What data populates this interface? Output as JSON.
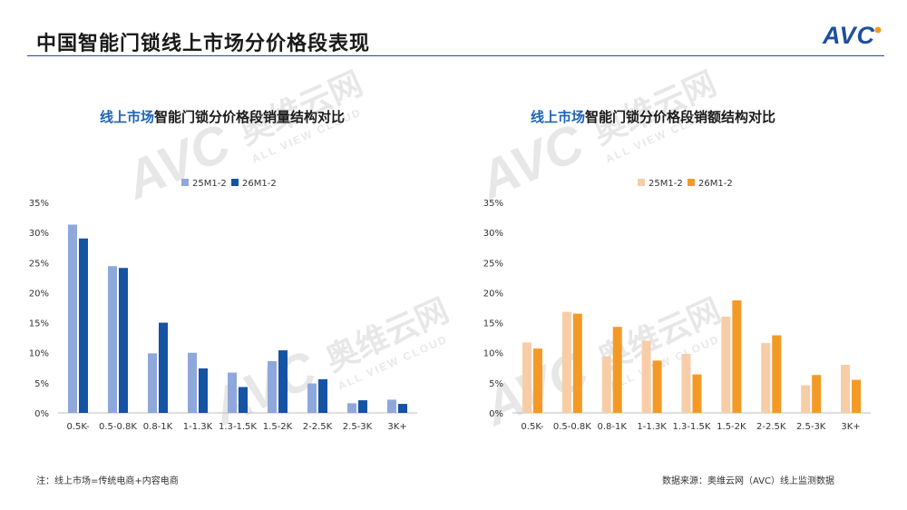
{
  "page": {
    "title": "中国智能门锁线上市场分价格段表现",
    "footnote": "注：线上市场=传统电商+内容电商",
    "source": "数据来源：奥维云网（AVC）线上监测数据"
  },
  "logo": {
    "text": "AVC",
    "color": "#1d4f9c"
  },
  "watermark": {
    "brand": "AVC",
    "cn": "奥维云网",
    "en": "ALL VIEW CLOUD"
  },
  "chart_data": [
    {
      "type": "bar",
      "title_highlight": "线上市场",
      "title_rest": "智能门锁分价格段销量结构对比",
      "categories": [
        "0.5K-",
        "0.5-0.8K",
        "0.8-1K",
        "1-1.3K",
        "1.3-1.5K",
        "1.5-2K",
        "2-2.5K",
        "2.5-3K",
        "3K+"
      ],
      "series": [
        {
          "name": "25M1-2",
          "color": "#8fa8dc",
          "values": [
            31.3,
            24.4,
            9.9,
            10.0,
            6.7,
            8.6,
            4.9,
            1.6,
            2.2
          ]
        },
        {
          "name": "26M1-2",
          "color": "#1553a3",
          "values": [
            29.0,
            24.1,
            15.0,
            7.4,
            4.3,
            10.4,
            5.6,
            2.1,
            1.5
          ]
        }
      ],
      "yticks": [
        "0%",
        "5%",
        "10%",
        "15%",
        "20%",
        "25%",
        "30%",
        "35%"
      ],
      "ylim": [
        0,
        35
      ],
      "legend": "top-center"
    },
    {
      "type": "bar",
      "title_highlight": "线上市场",
      "title_rest": "智能门锁分价格段销额结构对比",
      "categories": [
        "0.5K-",
        "0.5-0.8K",
        "0.8-1K",
        "1-1.3K",
        "1.3-1.5K",
        "1.5-2K",
        "2-2.5K",
        "2.5-3K",
        "3K+"
      ],
      "series": [
        {
          "name": "25M1-2",
          "color": "#f7cda8",
          "values": [
            11.7,
            16.8,
            9.4,
            12.0,
            9.8,
            16.0,
            11.6,
            4.6,
            8.0
          ]
        },
        {
          "name": "26M1-2",
          "color": "#f39a26",
          "values": [
            10.7,
            16.5,
            14.3,
            8.7,
            6.4,
            18.7,
            12.9,
            6.3,
            5.5
          ]
        }
      ],
      "yticks": [
        "0%",
        "5%",
        "10%",
        "15%",
        "20%",
        "25%",
        "30%",
        "35%"
      ],
      "ylim": [
        0,
        35
      ],
      "legend": "top-center"
    }
  ]
}
